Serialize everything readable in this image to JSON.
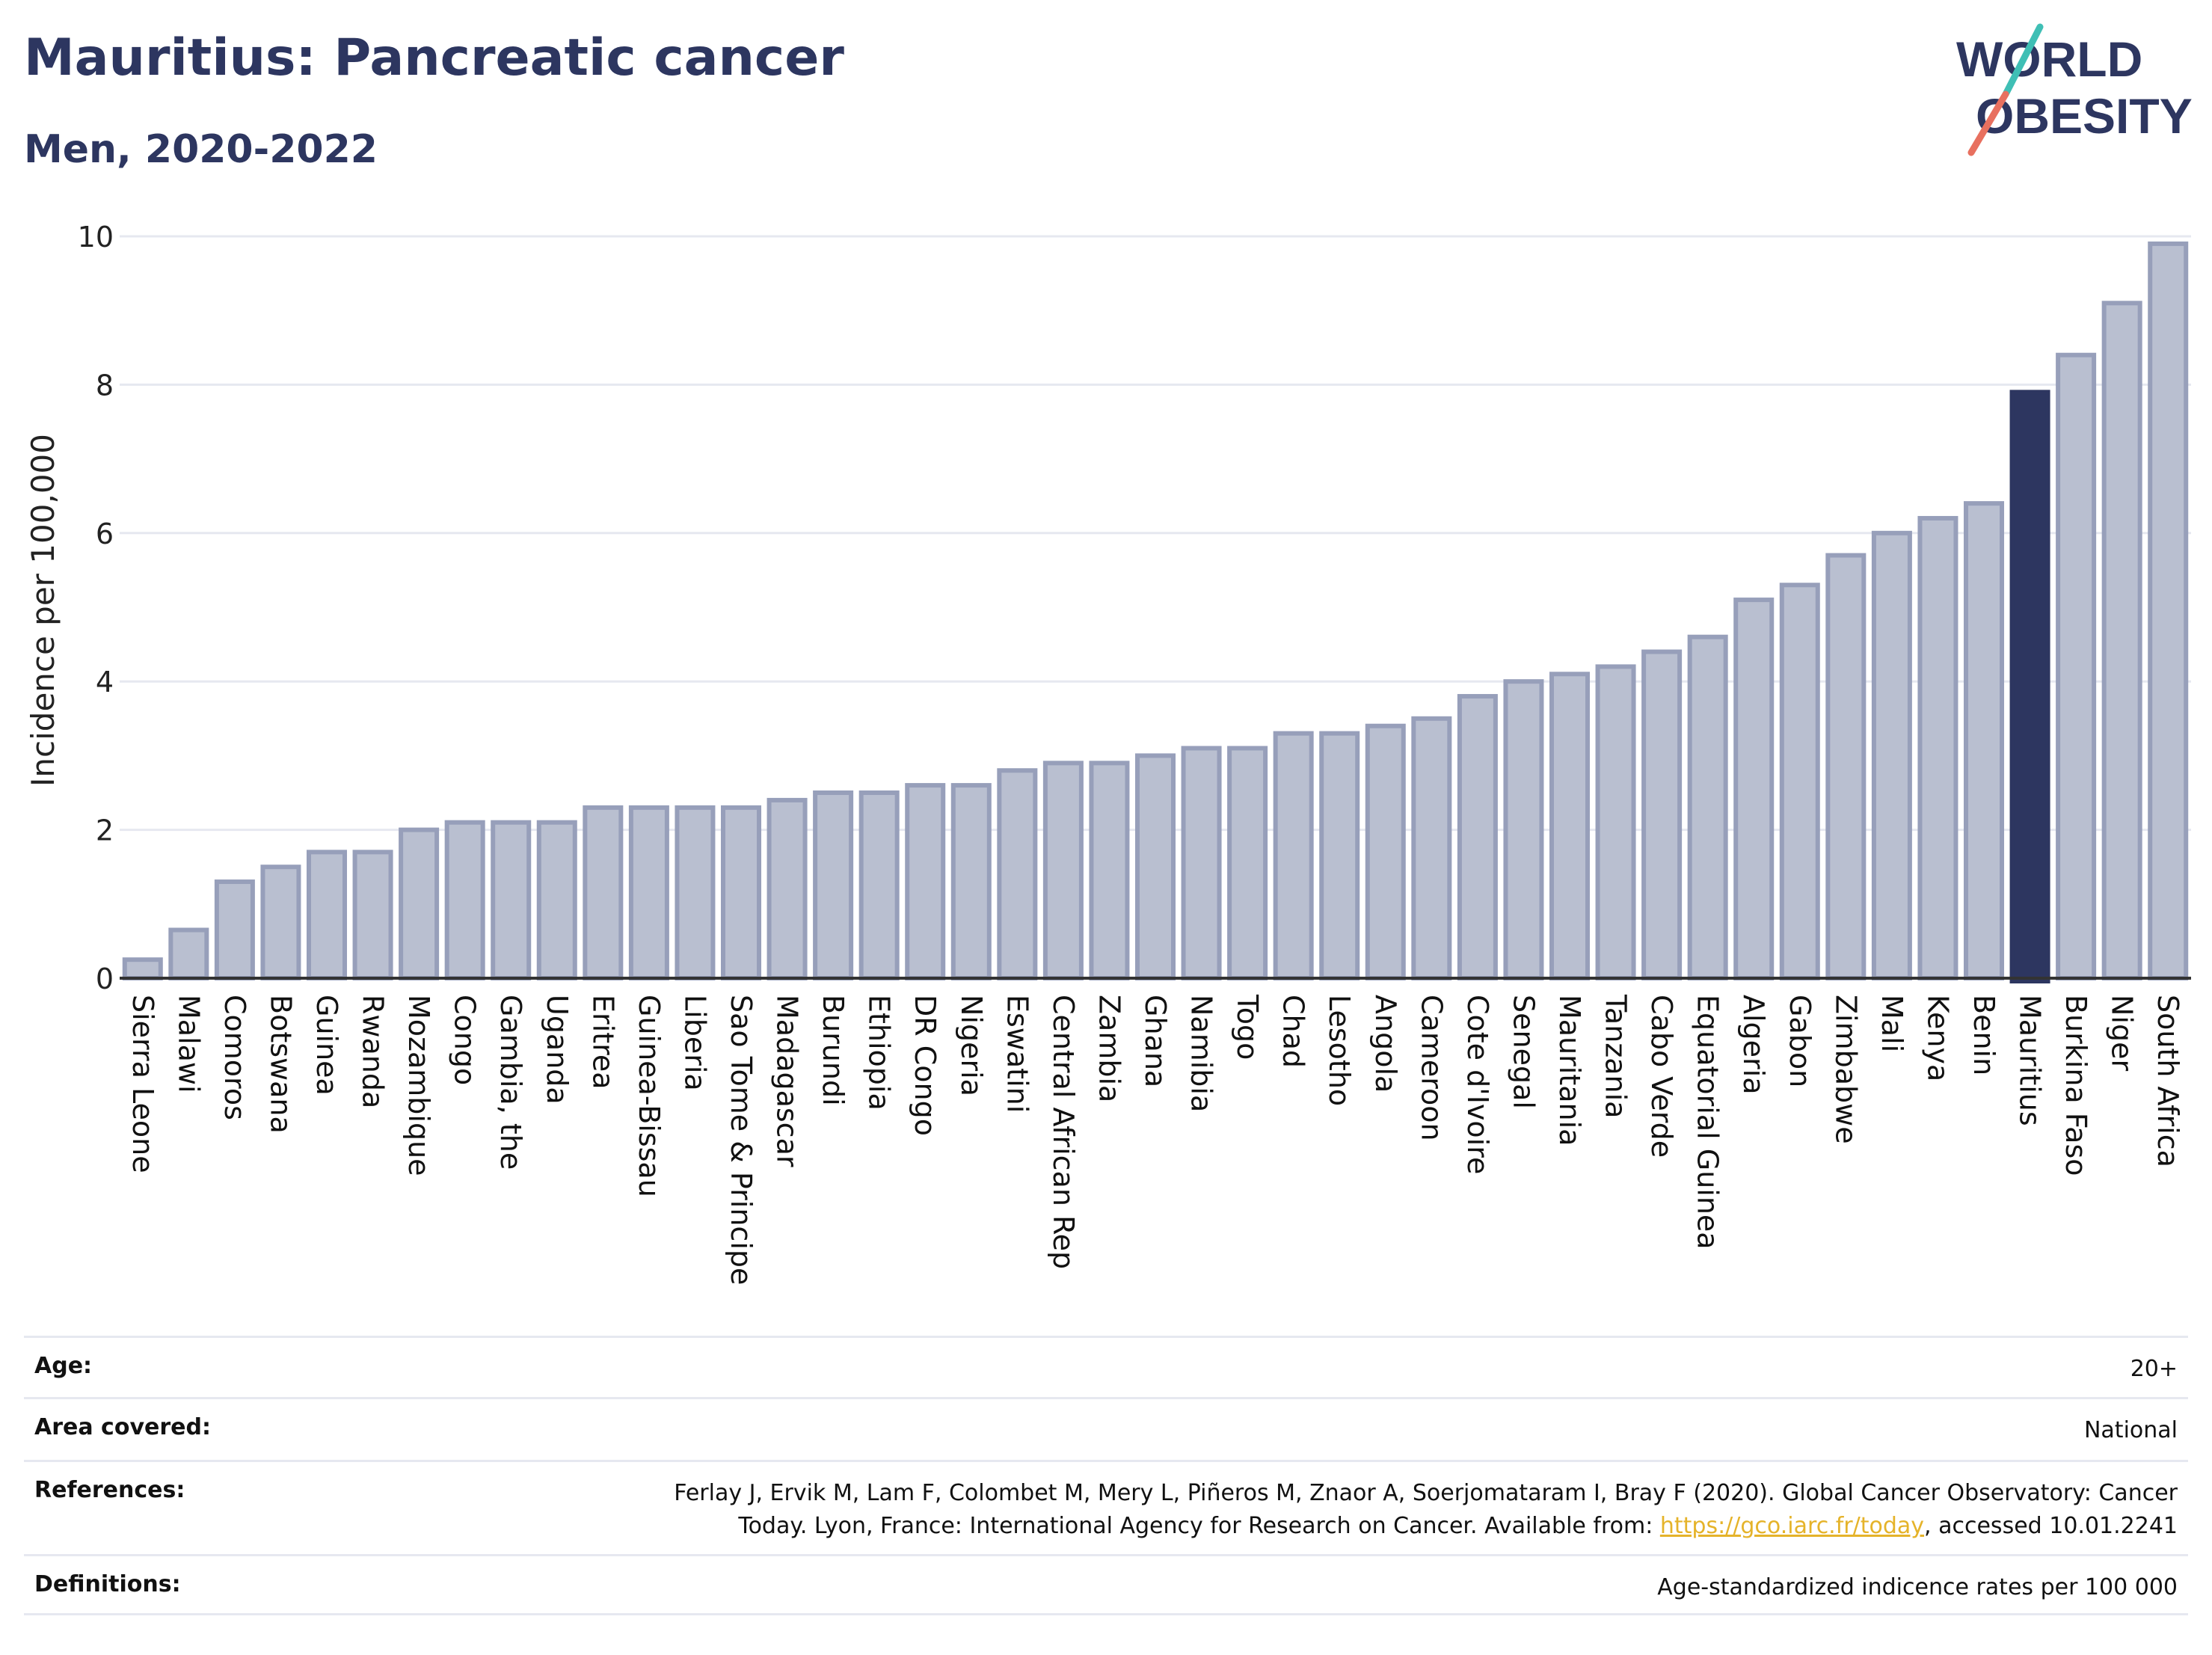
{
  "title": "Mauritius: Pancreatic cancer",
  "subtitle": "Men, 2020-2022",
  "logo": {
    "line1": "WORLD",
    "line2": "OBESITY"
  },
  "colors": {
    "bar": "#b9bfd0",
    "bar_stroke": "#979fba",
    "highlight": "#2d3660",
    "text": "#2d3660",
    "grid": "#e6e8f0",
    "logo_teal": "#3fbfb5",
    "logo_coral": "#e8705f",
    "link": "#e5b32a"
  },
  "chart_data": {
    "type": "bar",
    "ylabel": "Incidence per 100,000",
    "ylim": [
      0,
      10
    ],
    "yticks": [
      0,
      2,
      4,
      6,
      8,
      10
    ],
    "grid": true,
    "highlight": "Mauritius",
    "categories": [
      "Sierra Leone",
      "Malawi",
      "Comoros",
      "Botswana",
      "Guinea",
      "Rwanda",
      "Mozambique",
      "Congo",
      "Gambia, the",
      "Uganda",
      "Eritrea",
      "Guinea-Bissau",
      "Liberia",
      "Sao Tome & Principe",
      "Madagascar",
      "Burundi",
      "Ethiopia",
      "DR Congo",
      "Nigeria",
      "Eswatini",
      "Central African Rep",
      "Zambia",
      "Ghana",
      "Namibia",
      "Togo",
      "Chad",
      "Lesotho",
      "Angola",
      "Cameroon",
      "Cote d'Ivoire",
      "Senegal",
      "Mauritania",
      "Tanzania",
      "Cabo Verde",
      "Equatorial Guinea",
      "Algeria",
      "Gabon",
      "Zimbabwe",
      "Mali",
      "Kenya",
      "Benin",
      "Mauritius",
      "Burkina Faso",
      "Niger",
      "South Africa"
    ],
    "values": [
      0.25,
      0.65,
      1.3,
      1.5,
      1.7,
      1.7,
      2.0,
      2.1,
      2.1,
      2.1,
      2.3,
      2.3,
      2.3,
      2.3,
      2.4,
      2.5,
      2.5,
      2.6,
      2.6,
      2.8,
      2.9,
      2.9,
      3.0,
      3.1,
      3.1,
      3.3,
      3.3,
      3.4,
      3.5,
      3.8,
      4.0,
      4.1,
      4.2,
      4.4,
      4.6,
      5.1,
      5.3,
      5.7,
      6.0,
      6.2,
      6.4,
      7.9,
      8.4,
      9.1,
      9.9
    ]
  },
  "meta": [
    {
      "label": "Age:",
      "value": "20+"
    },
    {
      "label": "Area covered:",
      "value": "National"
    },
    {
      "label": "References:",
      "value_line1": "Ferlay J, Ervik M, Lam F, Colombet M, Mery L, Piñeros M, Znaor A, Soerjomataram I, Bray F (2020). Global Cancer Observatory: Cancer",
      "value_line2_pre": "Today. Lyon, France: International Agency for Research on Cancer. Available from: ",
      "link": "https://gco.iarc.fr/today",
      "value_line2_post": ", accessed 10.01.2241"
    },
    {
      "label": "Definitions:",
      "value": "Age-standardized indicence rates per 100 000"
    }
  ]
}
